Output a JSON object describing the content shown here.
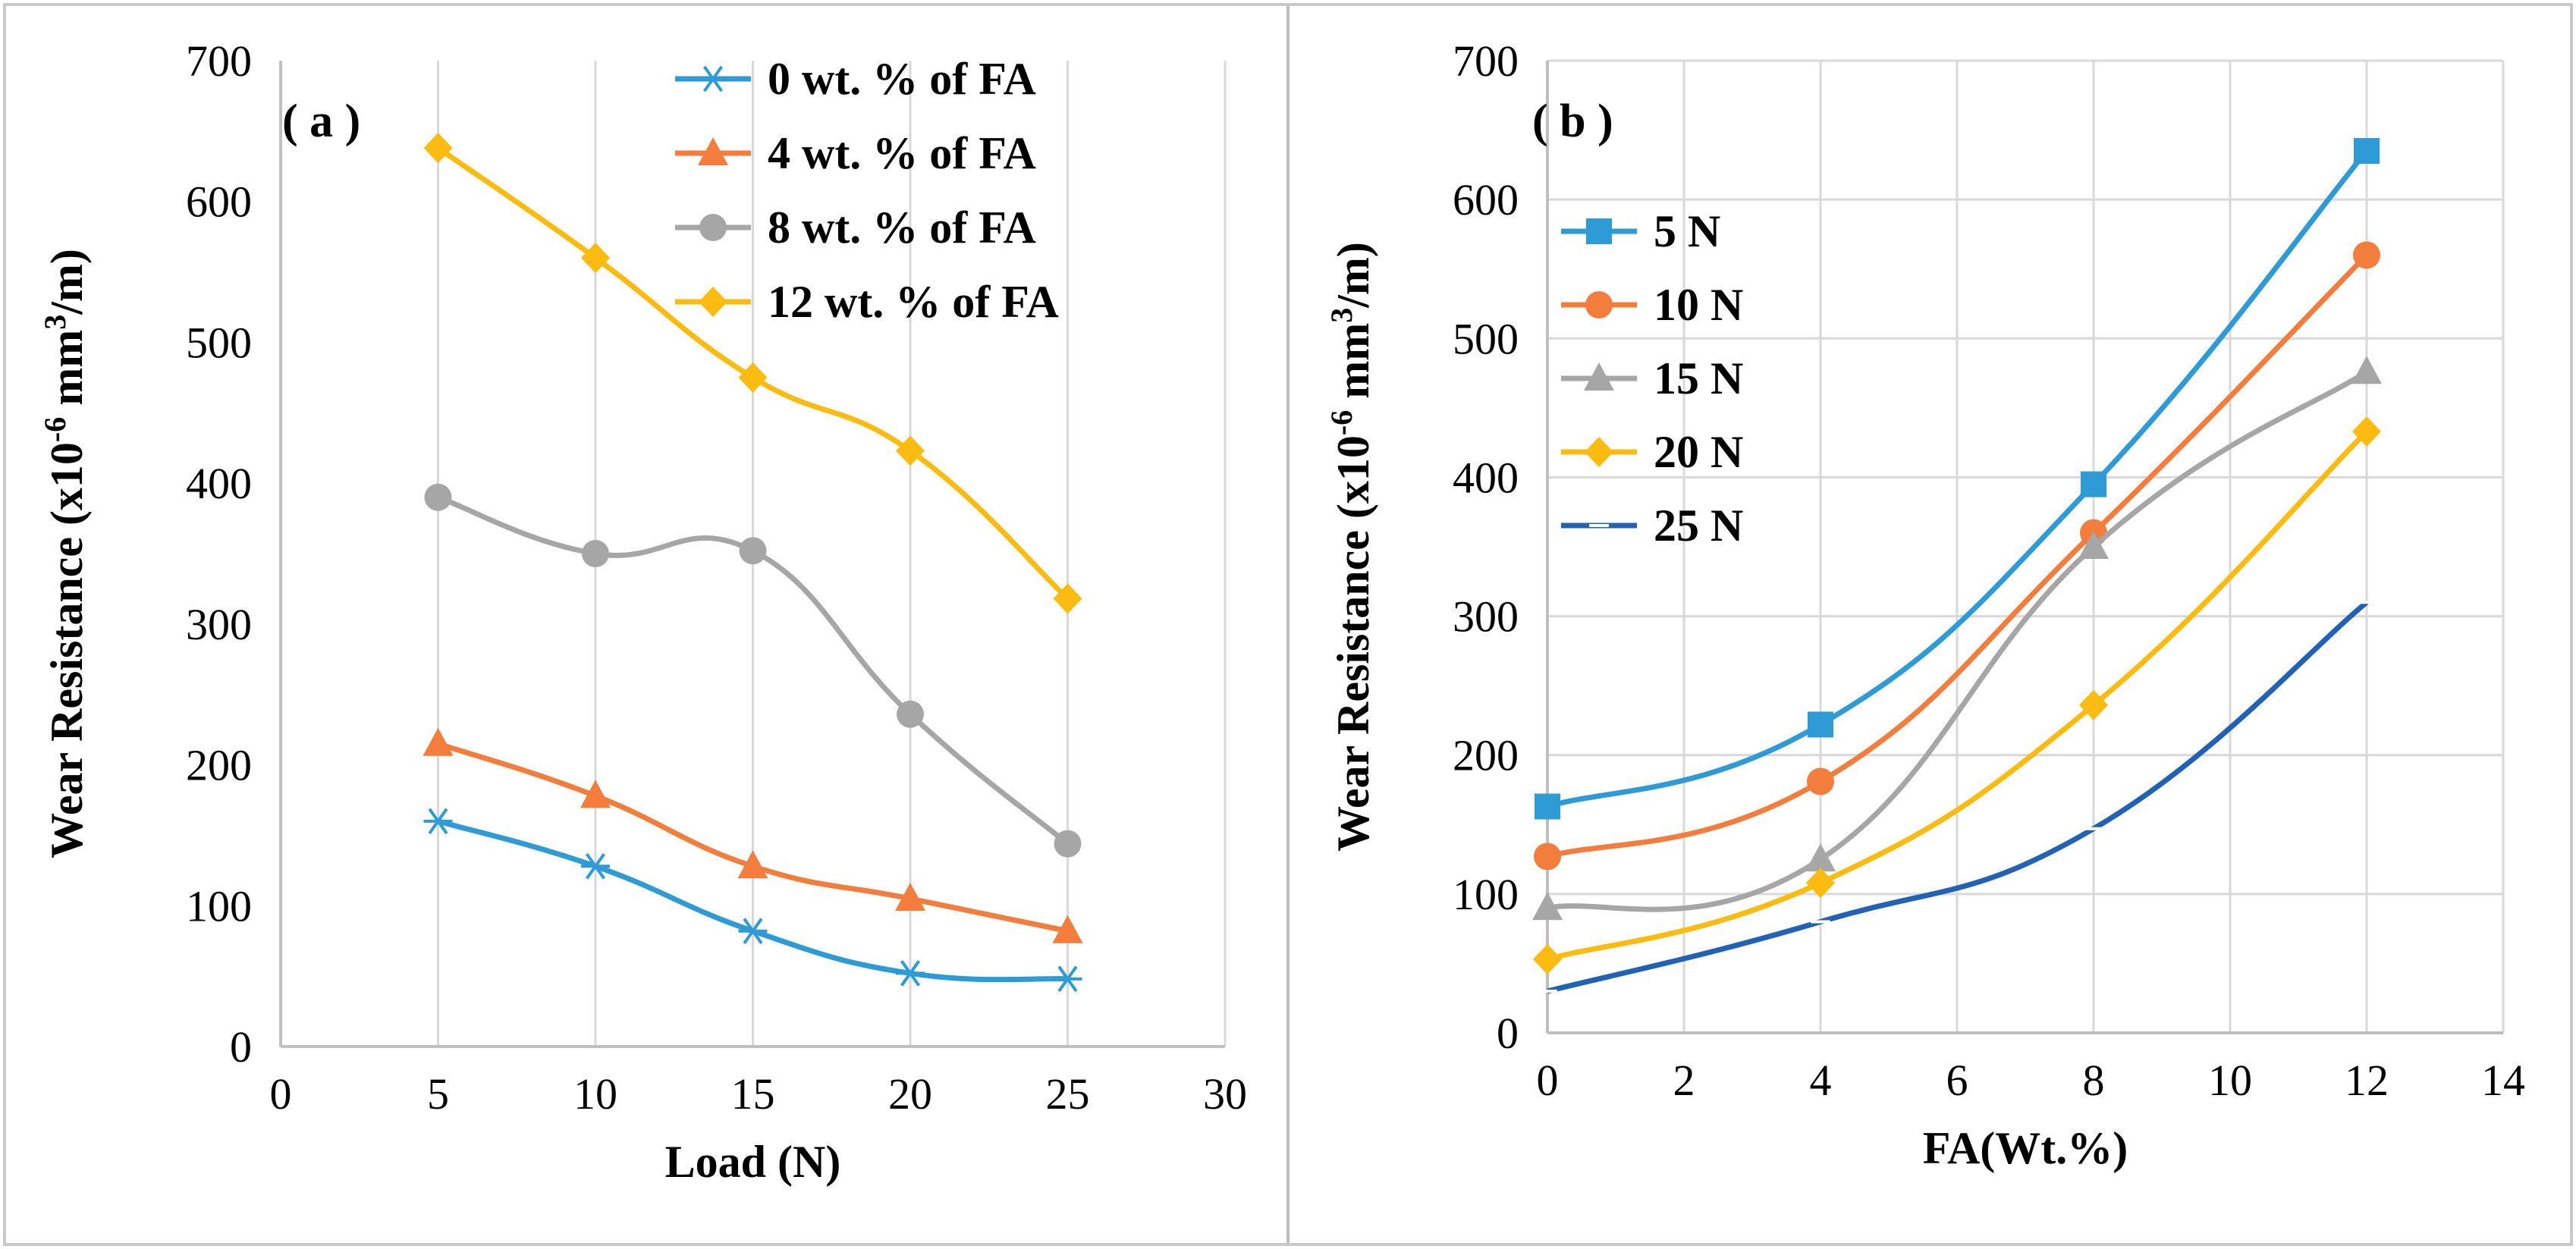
{
  "chart_data": [
    {
      "type": "line",
      "panel_label": "( a )",
      "xlabel": "Load (N)",
      "ylabel": "Wear Resistance (x10",
      "ylabel_sup1": "-6",
      "ylabel_mid": " mm",
      "ylabel_sup2": "3",
      "ylabel_end": "/m)",
      "xlim": [
        0,
        30
      ],
      "ylim": [
        0,
        700
      ],
      "xticks": [
        "0",
        "5",
        "10",
        "15",
        "20",
        "25",
        "30"
      ],
      "yticks": [
        "0",
        "100",
        "200",
        "300",
        "400",
        "500",
        "600",
        "700"
      ],
      "grid": "vertical",
      "legend_position": "top-right",
      "x": [
        5,
        10,
        15,
        20,
        25
      ],
      "series": [
        {
          "name": "0 wt. % of FA",
          "color": "#2e9bd6",
          "marker": "star",
          "values": [
            160,
            128,
            82,
            52,
            48
          ]
        },
        {
          "name": "4 wt. % of FA",
          "color": "#f37d3c",
          "marker": "triangle",
          "values": [
            215,
            178,
            128,
            105,
            82
          ]
        },
        {
          "name": "8 wt. % of FA",
          "color": "#a6a6a6",
          "marker": "circle",
          "values": [
            390,
            350,
            352,
            236,
            144
          ]
        },
        {
          "name": "12 wt. % of FA",
          "color": "#fbbb10",
          "marker": "diamond",
          "values": [
            638,
            560,
            475,
            423,
            318
          ]
        }
      ]
    },
    {
      "type": "line",
      "panel_label": "( b )",
      "xlabel": "FA(Wt.%)",
      "ylabel": "Wear Resistance (x10",
      "ylabel_sup1": "-6",
      "ylabel_mid": " mm",
      "ylabel_sup2": "3",
      "ylabel_end": "/m)",
      "xlim": [
        0,
        14
      ],
      "ylim": [
        0,
        700
      ],
      "xticks": [
        "0",
        "2",
        "4",
        "6",
        "8",
        "10",
        "12",
        "14"
      ],
      "yticks": [
        "0",
        "100",
        "200",
        "300",
        "400",
        "500",
        "600",
        "700"
      ],
      "grid": "both",
      "legend_position": "top-left",
      "x": [
        0,
        4,
        8,
        12
      ],
      "series": [
        {
          "name": "5 N",
          "color": "#2e9bd6",
          "marker": "square",
          "values": [
            163,
            222,
            395,
            635
          ]
        },
        {
          "name": "10 N",
          "color": "#f37d3c",
          "marker": "circle",
          "values": [
            127,
            181,
            360,
            560
          ]
        },
        {
          "name": "15 N",
          "color": "#a6a6a6",
          "marker": "triangle",
          "values": [
            90,
            125,
            350,
            476
          ]
        },
        {
          "name": "20 N",
          "color": "#fbbb10",
          "marker": "diamond",
          "values": [
            53,
            108,
            236,
            433
          ]
        },
        {
          "name": "25 N",
          "color": "#2262b5",
          "marker": "dash",
          "values": [
            30,
            80,
            147,
            310
          ]
        }
      ]
    }
  ]
}
